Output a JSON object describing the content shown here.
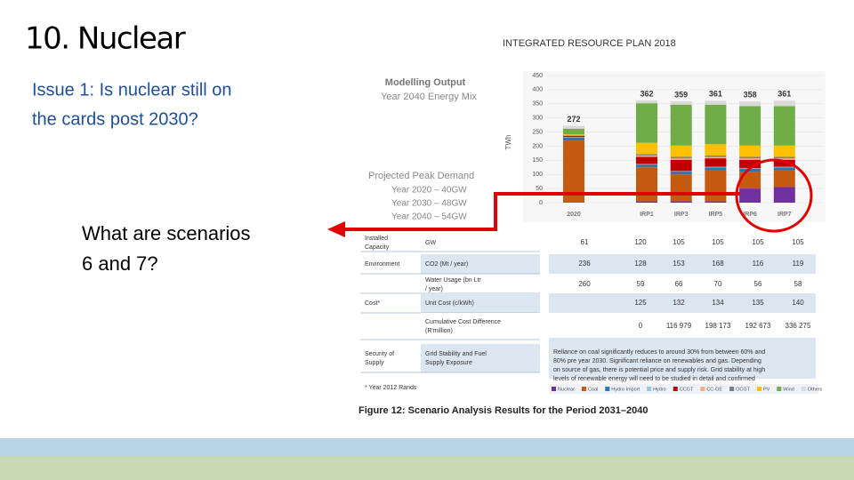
{
  "slide": {
    "title": "10. Nuclear",
    "issue_lines": [
      "Issue 1: Is nuclear still on",
      "the cards post 2030?"
    ],
    "question_lines": [
      "What are scenarios",
      "6 and 7?"
    ]
  },
  "figure": {
    "plan_title": "INTEGRATED RESOURCE PLAN 2018",
    "output_title": "Modelling Output",
    "output_subtitle": "Year 2040 Energy Mix",
    "peak_title": "Projected Peak Demand",
    "peak_lines": [
      "Year 2020 – 40GW",
      "Year 2030 – 48GW",
      "Year 2040 – 54GW"
    ],
    "caption": "Figure 12: Scenario Analysis Results for the Period 2031–2040",
    "footnote": "* Year 2012 Rands"
  },
  "chart_data": {
    "type": "stacked_bar",
    "y_label": "TWh",
    "categories": [
      "2020",
      "IRP1",
      "IRP3",
      "IRP5",
      "IRP6",
      "IRP7"
    ],
    "ylim": [
      0,
      450
    ],
    "yticks": [
      0,
      50,
      100,
      150,
      200,
      250,
      300,
      350,
      400,
      450
    ],
    "grid": true,
    "totals": [
      272,
      362,
      359,
      361,
      358,
      361
    ],
    "series": [
      {
        "name": "Nuclear",
        "color": "#7030a0",
        "values": [
          0,
          5,
          5,
          5,
          50,
          55
        ]
      },
      {
        "name": "Coal",
        "color": "#c55a11",
        "values": [
          220,
          120,
          95,
          110,
          60,
          60
        ]
      },
      {
        "name": "Hydro Import",
        "color": "#2e75b6",
        "values": [
          10,
          10,
          10,
          10,
          10,
          10
        ]
      },
      {
        "name": "Hydro",
        "color": "#9dc3e6",
        "values": [
          2,
          2,
          2,
          2,
          2,
          2
        ]
      },
      {
        "name": "CCGT",
        "color": "#c00000",
        "values": [
          5,
          25,
          40,
          30,
          30,
          25
        ]
      },
      {
        "name": "CC-GE",
        "color": "#f4b183",
        "values": [
          0,
          5,
          5,
          5,
          5,
          5
        ]
      },
      {
        "name": "OCGT",
        "color": "#7f7f7f",
        "values": [
          0,
          5,
          5,
          5,
          5,
          5
        ]
      },
      {
        "name": "PV",
        "color": "#ffc000",
        "values": [
          5,
          40,
          40,
          40,
          40,
          40
        ]
      },
      {
        "name": "Wind",
        "color": "#70ad47",
        "values": [
          20,
          140,
          145,
          140,
          140,
          140
        ]
      },
      {
        "name": "Others",
        "color": "#d9d9d9",
        "values": [
          10,
          10,
          12,
          14,
          16,
          19
        ]
      }
    ]
  },
  "table": {
    "rows": [
      [
        "Installed Capacity",
        "GW",
        "61",
        "120",
        "105",
        "105",
        "105",
        "105"
      ],
      [
        "Environment",
        "CO2 (Mt / year)",
        "236",
        "128",
        "153",
        "168",
        "116",
        "119"
      ],
      [
        "",
        "Water Usage (bn Ltr / year)",
        "260",
        "59",
        "66",
        "70",
        "56",
        "58"
      ],
      [
        "Cost*",
        "Unit Cost (c/kWh)",
        "",
        "125",
        "132",
        "134",
        "135",
        "140"
      ],
      [
        "",
        "Cumulative Cost Difference (R'million)",
        "",
        "0",
        "116 979",
        "198 173",
        "192 673",
        "336 275"
      ],
      [
        "Security of Supply",
        "Grid Stability and Fuel Supply Exposure"
      ]
    ],
    "security_note_lines": [
      "Reliance on coal significantly reduces to around 30% from between 60% and",
      "80% pre year 2030. Significant reliance on renewables and gas. Depending",
      "on source of gas, there is potential price and supply risk. Grid stability at high",
      "levels of renewable energy will need to be studied in detail and confirmed"
    ]
  }
}
